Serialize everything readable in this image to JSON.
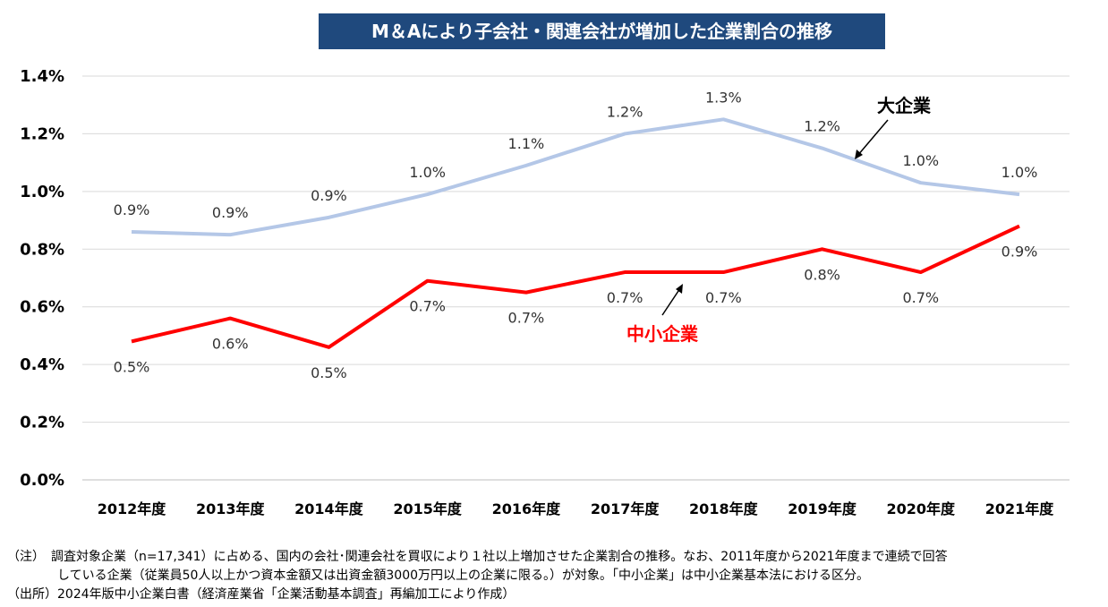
{
  "chart_data": {
    "type": "line",
    "title": "M＆Aにより子会社・関連会社が増加した企業割合の推移",
    "categories": [
      "2012年度",
      "2013年度",
      "2014年度",
      "2015年度",
      "2016年度",
      "2017年度",
      "2018年度",
      "2019年度",
      "2020年度",
      "2021年度"
    ],
    "ylim": [
      0,
      1.4
    ],
    "yticks": [
      "0.0%",
      "0.2%",
      "0.4%",
      "0.6%",
      "0.8%",
      "1.0%",
      "1.2%",
      "1.4%"
    ],
    "grid": true,
    "series": [
      {
        "name": "大企業",
        "color": "#b4c7e7",
        "values": [
          0.86,
          0.85,
          0.91,
          0.99,
          1.09,
          1.2,
          1.25,
          1.15,
          1.03,
          0.99
        ],
        "labels": [
          "0.9%",
          "0.9%",
          "0.9%",
          "1.0%",
          "1.1%",
          "1.2%",
          "1.3%",
          "1.2%",
          "1.0%",
          "1.0%"
        ]
      },
      {
        "name": "中小企業",
        "color": "#ff0000",
        "values": [
          0.48,
          0.56,
          0.46,
          0.69,
          0.65,
          0.72,
          0.72,
          0.8,
          0.72,
          0.88
        ],
        "labels": [
          "0.5%",
          "0.6%",
          "0.5%",
          "0.7%",
          "0.7%",
          "0.7%",
          "0.7%",
          "0.8%",
          "0.7%",
          "0.9%"
        ]
      }
    ]
  },
  "notes": {
    "line1": "（注）　調査対象企業（n=17,341）に占める、国内の会社･関連会社を買収により１社以上増加させた企業割合の推移。なお、2011年度から2021年度まで連続で回答",
    "line2": "している企業（従業員50人以上かつ資本金額又は出資金額3000万円以上の企業に限る。）が対象。「中小企業」は中小企業基本法における区分。",
    "line3": "（出所）2024年版中小企業白書（経済産業省「企業活動基本調査」再編加工により作成）"
  }
}
